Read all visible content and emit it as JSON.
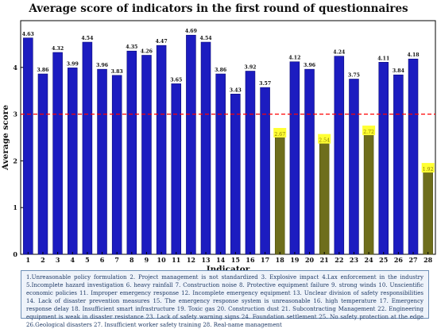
{
  "chart_data": {
    "type": "bar",
    "title": "Average score of indicators in the first round of questionnaires",
    "xlabel": "Indicator",
    "ylabel": "Average score",
    "categories": [
      "1",
      "2",
      "3",
      "4",
      "5",
      "6",
      "7",
      "8",
      "9",
      "10",
      "11",
      "12",
      "13",
      "14",
      "15",
      "16",
      "17",
      "18",
      "19",
      "20",
      "21",
      "22",
      "23",
      "24",
      "25",
      "26",
      "27",
      "28"
    ],
    "values": [
      4.63,
      3.86,
      4.32,
      3.99,
      4.54,
      3.96,
      3.83,
      4.35,
      4.26,
      4.47,
      3.65,
      4.69,
      4.54,
      3.86,
      3.43,
      3.92,
      3.57,
      2.67,
      4.12,
      3.96,
      2.54,
      4.24,
      3.75,
      2.72,
      4.11,
      3.84,
      4.18,
      1.92
    ],
    "ylim": [
      0,
      5
    ],
    "yticks": [
      0,
      1,
      2,
      3,
      4
    ],
    "threshold": 3,
    "grid": false,
    "colors": {
      "bar_high": "#1c1cc0",
      "bar_low": "#6e6e1c",
      "label_low_bg": "#ffff33",
      "threshold_line": "#ff0000"
    }
  },
  "legend_text": "1.Unreasonable policy formulation    2. Project management is not standardized    3. Explosive impact    4.Lax enforcement in the industry   5.Incomplete hazard investigation    6. heavy rainfall    7. Construction noise    8. Protective equipment failure    9. strong winds    10. Unscientific economic policies    11. Improper emergency response    12. Incomplete emergency equipment    13. Unclear division of safety responsibilities    14. Lack of disaster prevention measures    15. The emergency response system is unreasonable    16. high temperature    17. Emergency response delay    18. Insufficient smart infrastructure    19. Toxic gas    20. Construction dust    21. Subcontracting Management    22. Engineering equipment is weak in disaster resistance    23. Lack of safety warning signs    24. Foundation settlement    25. No safety protection at the edge    26.Geological disasters    27. Insufficient worker safety training    28. Real-name management"
}
